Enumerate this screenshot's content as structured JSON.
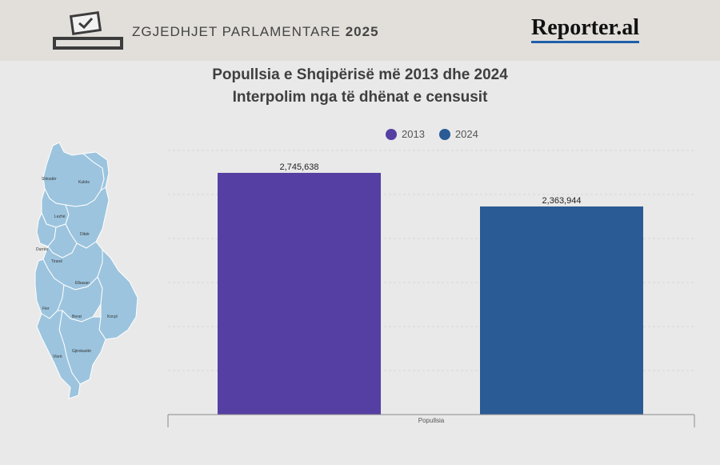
{
  "header": {
    "title": "ZGJEDHJET PARLAMENTARE",
    "year": "2025",
    "brand": "Reporter.al",
    "icon": "ballot-box-icon"
  },
  "map": {
    "regions": [
      "Shkodër",
      "Kukës",
      "Lezhë",
      "Dibër",
      "Durrës",
      "Tiranë",
      "Elbasan",
      "Fier",
      "Berat",
      "Korçë",
      "Gjirokastër",
      "Vlorë"
    ]
  },
  "chart_data": {
    "type": "bar",
    "title": "Popullsia e Shqipërisë më 2013 dhe 2024",
    "subtitle": "Interpolim nga të dhënat e censusit",
    "categories": [
      "Popullsia"
    ],
    "series": [
      {
        "name": "2013",
        "values": [
          2745638
        ],
        "label": "2,745,638",
        "color": "#553fa3"
      },
      {
        "name": "2024",
        "values": [
          2363944
        ],
        "label": "2,363,944",
        "color": "#2a5b95"
      }
    ],
    "ylim": [
      0,
      3000000
    ],
    "grid": true,
    "legend": "top"
  }
}
